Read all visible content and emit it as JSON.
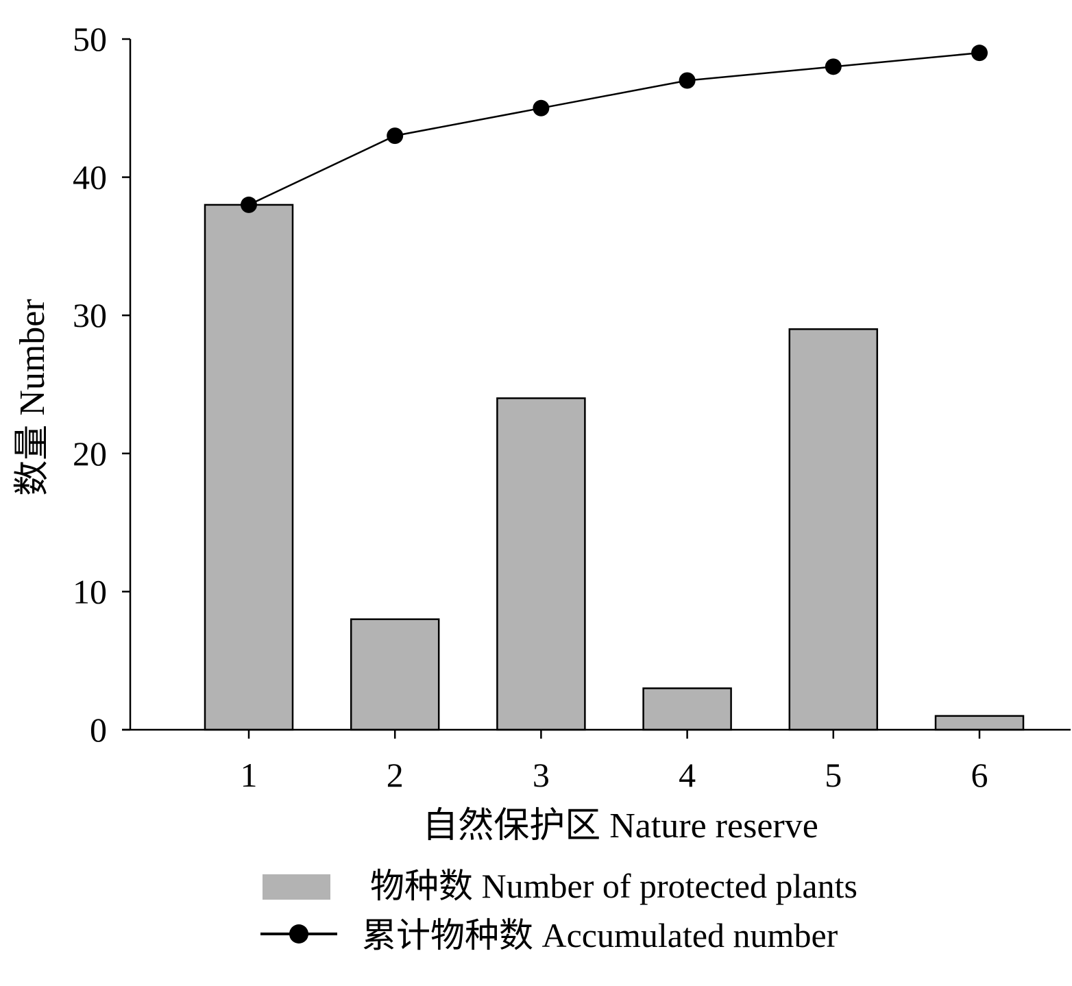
{
  "chart_data": {
    "type": "bar",
    "categories": [
      "1",
      "2",
      "3",
      "4",
      "5",
      "6"
    ],
    "series": [
      {
        "name": "物种数 Number of protected plants",
        "type": "bar",
        "values": [
          38,
          8,
          24,
          3,
          29,
          1
        ],
        "color": "#b3b3b3"
      },
      {
        "name": "累计物种数 Accumulated number",
        "type": "line",
        "marker": "filled-circle",
        "values": [
          38,
          43,
          45,
          47,
          48,
          49
        ],
        "color": "#000000"
      }
    ],
    "xlabel": "自然保护区 Nature reserve",
    "ylabel": "数量 Number",
    "ylim": [
      0,
      50
    ],
    "yticks": [
      0,
      10,
      20,
      30,
      40,
      50
    ],
    "grid": false,
    "legend": "bottom"
  }
}
